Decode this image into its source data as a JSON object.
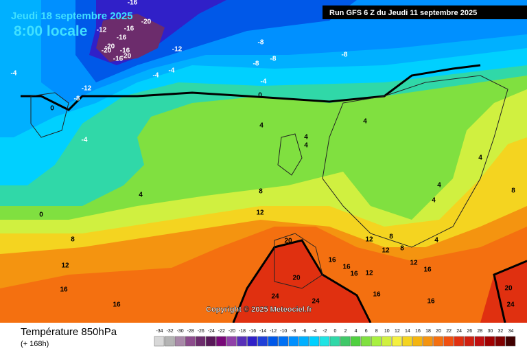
{
  "header": {
    "date": "Jeudi 18 septembre 2025",
    "time": "8:00 locale",
    "run": "Run GFS 6 Z du Jeudi 11 septembre 2025"
  },
  "copyright": "Copyright © 2025 Meteociel.fr",
  "footer": {
    "title": "Température 850hPa",
    "lead": "(+ 168h)"
  },
  "contour_labels": [
    -16,
    -20,
    -12,
    -16,
    -16,
    -20,
    -16,
    -20,
    -20,
    -16,
    -12,
    -8,
    -8,
    -8,
    -8,
    -4,
    -4,
    -4,
    -4,
    -12,
    -8,
    0,
    0,
    -4,
    4,
    4,
    4,
    4,
    4,
    4,
    4,
    4,
    4,
    8,
    8,
    0,
    8,
    12,
    12,
    12,
    12,
    12,
    16,
    16,
    16,
    16,
    16,
    16,
    16,
    16,
    12,
    20,
    20,
    24,
    24,
    20,
    24,
    8,
    8
  ],
  "legend": {
    "labels": [
      -34,
      -32,
      -30,
      -28,
      -26,
      -24,
      -22,
      -20,
      -18,
      -16,
      -14,
      -12,
      -10,
      -8,
      -6,
      -4,
      -2,
      0,
      2,
      4,
      6,
      8,
      10,
      12,
      14,
      16,
      18,
      20,
      22,
      24,
      26,
      28,
      30,
      32,
      34
    ],
    "colors": [
      "#d8d8d8",
      "#b4b4b4",
      "#a888a8",
      "#8c4c8c",
      "#6c2c6c",
      "#581858",
      "#780878",
      "#9040a8",
      "#5830b8",
      "#3020c8",
      "#2040d8",
      "#0058e8",
      "#0070f4",
      "#0090ff",
      "#00b0ff",
      "#00d0ff",
      "#20e4e4",
      "#30d8a8",
      "#40c868",
      "#50d040",
      "#80e040",
      "#a8f040",
      "#d0f040",
      "#f4f040",
      "#f4d420",
      "#f4b410",
      "#f49410",
      "#f47010",
      "#f05010",
      "#e03010",
      "#d02010",
      "#c01010",
      "#a00000",
      "#800000",
      "#400000"
    ]
  }
}
